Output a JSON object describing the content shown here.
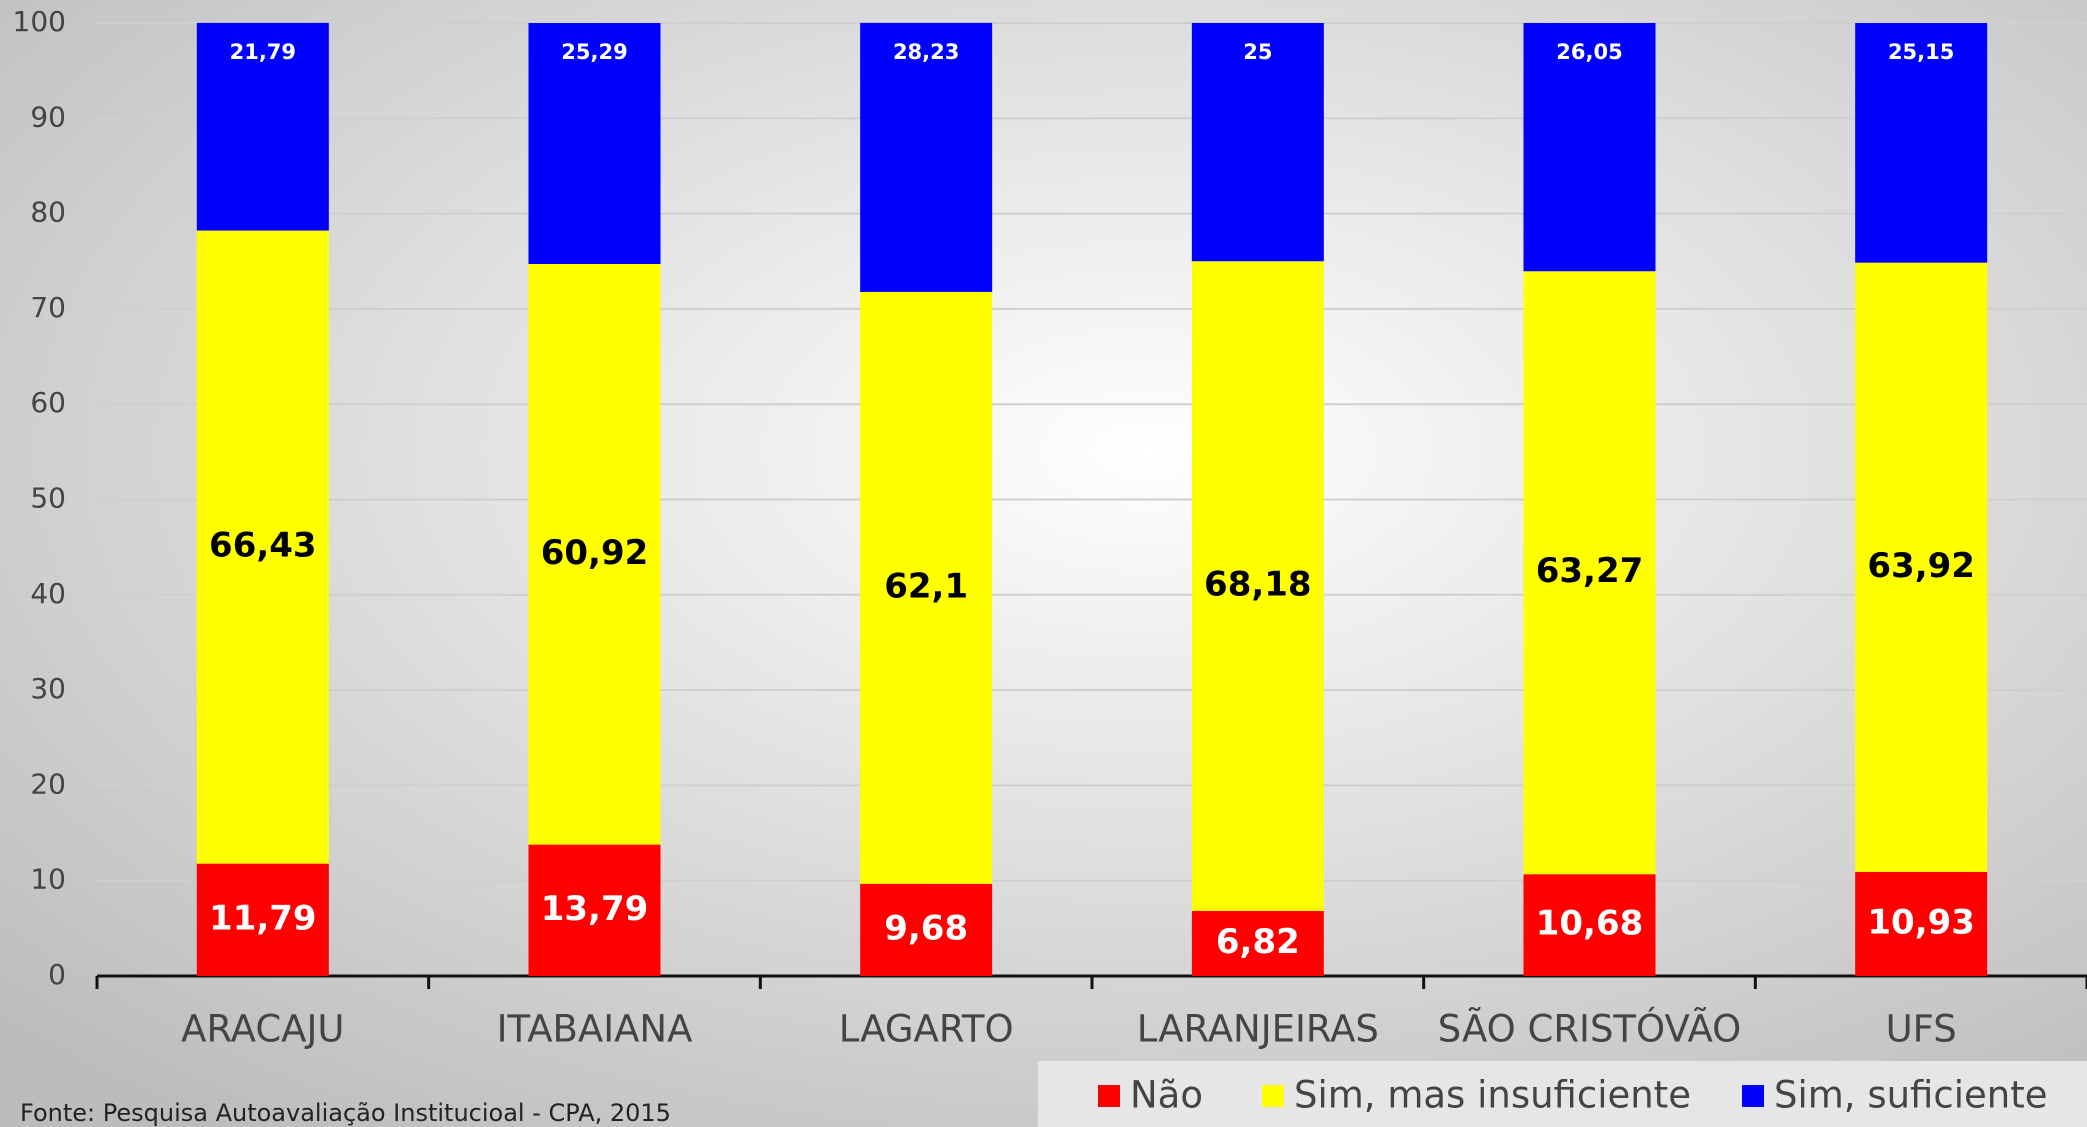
{
  "chart_data": {
    "type": "stacked_bar",
    "categories": [
      "ARACAJU",
      "ITABAIANA",
      "LAGARTO",
      "LARANJEIRAS",
      "SÃO CRISTÓVÃO",
      "UFS"
    ],
    "series": [
      {
        "name": "Não",
        "color": "#ff0000",
        "values": [
          11.79,
          13.79,
          9.68,
          6.82,
          10.68,
          10.93
        ],
        "value_labels": [
          "11,79",
          "13,79",
          "9,68",
          "6,82",
          "10,68",
          "10,93"
        ]
      },
      {
        "name": "Sim, mas insuficiente",
        "color": "#ffff00",
        "values": [
          66.43,
          60.92,
          62.1,
          68.18,
          63.27,
          63.92
        ],
        "value_labels": [
          "66,43",
          "60,92",
          "62,1",
          "68,18",
          "63,27",
          "63,92"
        ]
      },
      {
        "name": "Sim, suficiente",
        "color": "#0000ff",
        "values": [
          21.79,
          25.29,
          28.23,
          25,
          26.05,
          25.15
        ],
        "value_labels": [
          "21,79",
          "25,29",
          "28,23",
          "25",
          "26,05",
          "25,15"
        ]
      }
    ],
    "ylim": [
      0,
      100
    ],
    "yticks": [
      0,
      10,
      20,
      30,
      40,
      50,
      60,
      70,
      80,
      90,
      100
    ],
    "grid": true,
    "legend": "bottom-right",
    "source": "Fonte: Pesquisa Autoavaliação Institucioal - CPA, 2015"
  }
}
